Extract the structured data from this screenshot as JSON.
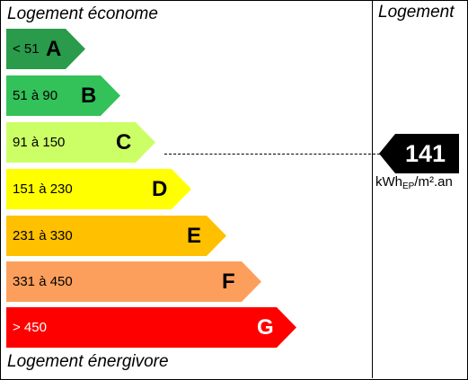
{
  "header": {
    "top_label": "Logement économe",
    "right_label": "Logement"
  },
  "footer": {
    "bottom_label": "Logement énergivore"
  },
  "classes": [
    {
      "range": "< 51",
      "letter": "A",
      "color": "#2a9a4b",
      "range_light": false,
      "letter_light": false
    },
    {
      "range": "51 à 90",
      "letter": "B",
      "color": "#33c15a",
      "range_light": false,
      "letter_light": false
    },
    {
      "range": "91 à 150",
      "letter": "C",
      "color": "#ccff66",
      "range_light": false,
      "letter_light": false
    },
    {
      "range": "151 à 230",
      "letter": "D",
      "color": "#ffff00",
      "range_light": false,
      "letter_light": false
    },
    {
      "range": "231 à 330",
      "letter": "E",
      "color": "#ffc000",
      "range_light": false,
      "letter_light": false
    },
    {
      "range": "331 à 450",
      "letter": "F",
      "color": "#fd9f5c",
      "range_light": false,
      "letter_light": false
    },
    {
      "range": "> 450",
      "letter": "G",
      "color": "#ff0000",
      "range_light": true,
      "letter_light": true
    }
  ],
  "indicator": {
    "value": "141",
    "class": "C",
    "unit_main": "kWh",
    "unit_sub": "EP",
    "unit_tail": "/m².an",
    "color": "#000000"
  }
}
